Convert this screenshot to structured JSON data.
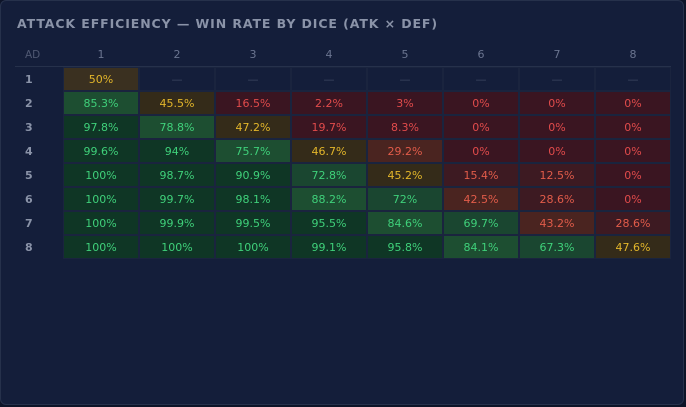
{
  "panel": {
    "title": "ATTACK EFFICIENCY — WIN RATE BY DICE (ATK × DEF)"
  },
  "table": {
    "corner_label": "AD",
    "columns": [
      "1",
      "2",
      "3",
      "4",
      "5",
      "6",
      "7",
      "8"
    ],
    "rows": [
      {
        "label": "1",
        "cells": [
          "50%",
          "—",
          "—",
          "—",
          "—",
          "—",
          "—",
          "—"
        ]
      },
      {
        "label": "2",
        "cells": [
          "85.3%",
          "45.5%",
          "16.5%",
          "2.2%",
          "3%",
          "0%",
          "0%",
          "0%"
        ]
      },
      {
        "label": "3",
        "cells": [
          "97.8%",
          "78.8%",
          "47.2%",
          "19.7%",
          "8.3%",
          "0%",
          "0%",
          "0%"
        ]
      },
      {
        "label": "4",
        "cells": [
          "99.6%",
          "94%",
          "75.7%",
          "46.7%",
          "29.2%",
          "0%",
          "0%",
          "0%"
        ]
      },
      {
        "label": "5",
        "cells": [
          "100%",
          "98.7%",
          "90.9%",
          "72.8%",
          "45.2%",
          "15.4%",
          "12.5%",
          "0%"
        ]
      },
      {
        "label": "6",
        "cells": [
          "100%",
          "99.7%",
          "98.1%",
          "88.2%",
          "72%",
          "42.5%",
          "28.6%",
          "0%"
        ]
      },
      {
        "label": "7",
        "cells": [
          "100%",
          "99.9%",
          "99.5%",
          "95.5%",
          "84.6%",
          "69.7%",
          "43.2%",
          "28.6%"
        ]
      },
      {
        "label": "8",
        "cells": [
          "100%",
          "100%",
          "100%",
          "99.1%",
          "95.8%",
          "84.1%",
          "67.3%",
          "47.6%"
        ]
      }
    ],
    "tones": [
      [
        "y",
        "e",
        "e",
        "e",
        "e",
        "e",
        "e",
        "e"
      ],
      [
        "gb",
        "yh",
        "r",
        "r",
        "r",
        "r",
        "r",
        "r"
      ],
      [
        "gd",
        "gb",
        "yh",
        "r",
        "r",
        "r",
        "r",
        "r"
      ],
      [
        "gd",
        "gd",
        "gb",
        "yh",
        "rm",
        "r",
        "r",
        "r"
      ],
      [
        "gd",
        "gd",
        "gd",
        "gm",
        "yh",
        "rs",
        "rs",
        "r"
      ],
      [
        "gd",
        "gd",
        "gd",
        "gb",
        "gm",
        "rm",
        "rs",
        "r"
      ],
      [
        "gd",
        "gd",
        "gd",
        "gd",
        "gb",
        "gm",
        "rm",
        "rs"
      ],
      [
        "gd",
        "gd",
        "gd",
        "gd",
        "gd",
        "gb",
        "gm",
        "yh"
      ]
    ]
  }
}
